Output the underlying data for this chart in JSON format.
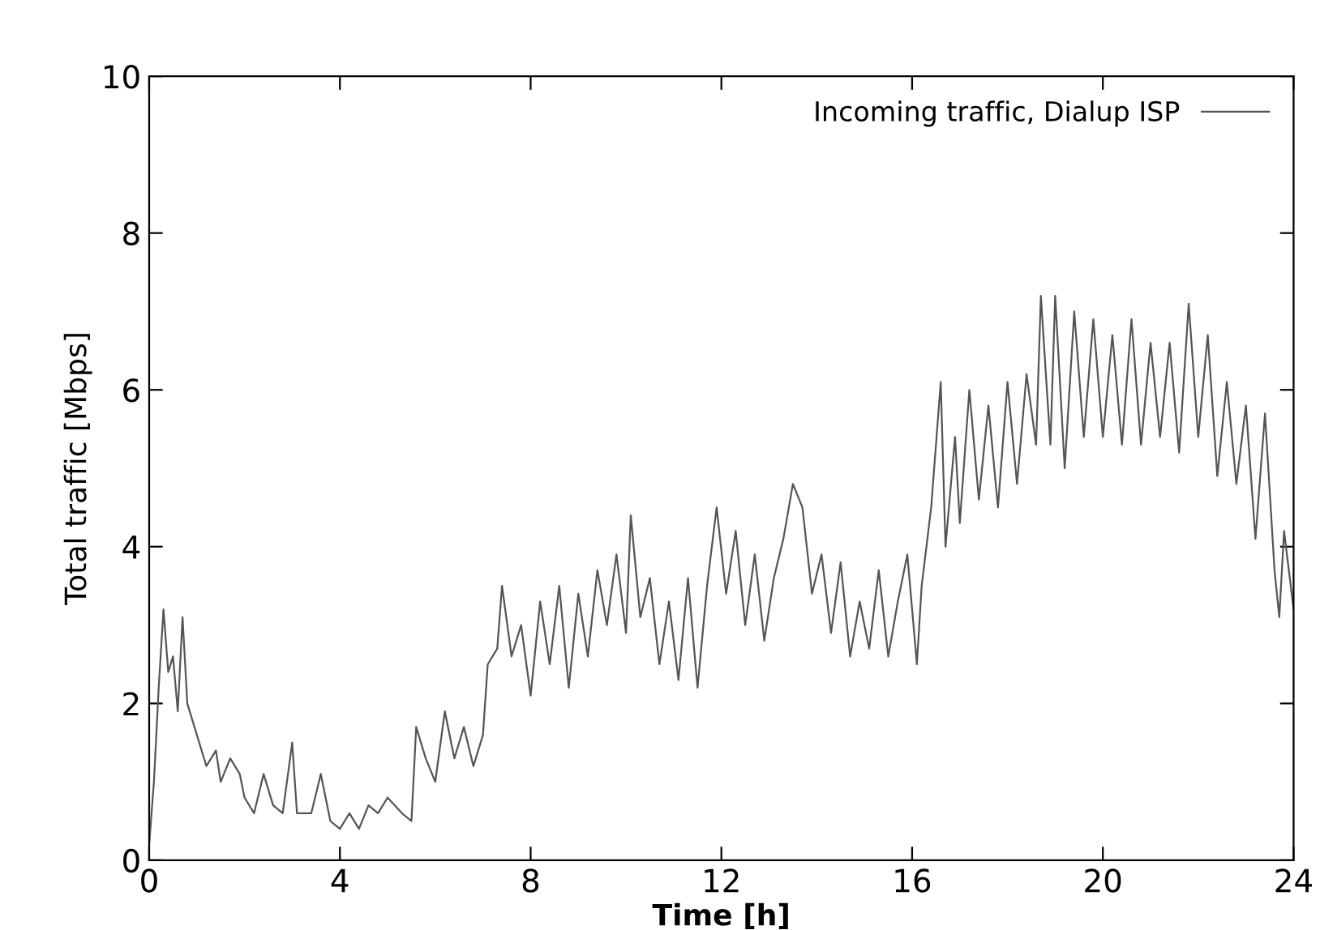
{
  "chart_data": {
    "type": "line",
    "xlabel": "Time [h]",
    "ylabel": "Total traffic [Mbps]",
    "xlim": [
      0,
      24
    ],
    "ylim": [
      0,
      10
    ],
    "xticks": [
      0,
      4,
      8,
      12,
      16,
      20,
      24
    ],
    "yticks": [
      0,
      2,
      4,
      6,
      8,
      10
    ],
    "grid": false,
    "legend": "top right",
    "marker": "none",
    "line_style": "solid",
    "series": [
      {
        "name": "Incoming traffic, Dialup ISP",
        "color": "#555555",
        "x": [
          0,
          0.1,
          0.2,
          0.3,
          0.4,
          0.5,
          0.6,
          0.7,
          0.8,
          1.0,
          1.2,
          1.4,
          1.5,
          1.7,
          1.9,
          2.0,
          2.2,
          2.4,
          2.6,
          2.8,
          3.0,
          3.1,
          3.4,
          3.6,
          3.8,
          4.0,
          4.2,
          4.4,
          4.6,
          4.8,
          5.0,
          5.3,
          5.5,
          5.6,
          5.8,
          6.0,
          6.2,
          6.4,
          6.6,
          6.8,
          7.0,
          7.1,
          7.3,
          7.4,
          7.6,
          7.8,
          8.0,
          8.2,
          8.4,
          8.6,
          8.8,
          9.0,
          9.2,
          9.4,
          9.6,
          9.8,
          10.0,
          10.1,
          10.3,
          10.5,
          10.7,
          10.9,
          11.1,
          11.3,
          11.5,
          11.7,
          11.9,
          12.1,
          12.3,
          12.5,
          12.7,
          12.9,
          13.1,
          13.3,
          13.5,
          13.7,
          13.9,
          14.1,
          14.3,
          14.5,
          14.7,
          14.9,
          15.1,
          15.3,
          15.5,
          15.7,
          15.9,
          16.1,
          16.2,
          16.4,
          16.6,
          16.7,
          16.9,
          17.0,
          17.2,
          17.4,
          17.6,
          17.8,
          18.0,
          18.2,
          18.4,
          18.6,
          18.7,
          18.9,
          19.0,
          19.2,
          19.4,
          19.6,
          19.8,
          20.0,
          20.2,
          20.4,
          20.6,
          20.8,
          21.0,
          21.2,
          21.4,
          21.6,
          21.8,
          22.0,
          22.2,
          22.4,
          22.6,
          22.8,
          23.0,
          23.2,
          23.4,
          23.6,
          23.7,
          23.8,
          24.0
        ],
        "values": [
          0.2,
          1.0,
          2.2,
          3.2,
          2.4,
          2.6,
          1.9,
          3.1,
          2.0,
          1.6,
          1.2,
          1.4,
          1.0,
          1.3,
          1.1,
          0.8,
          0.6,
          1.1,
          0.7,
          0.6,
          1.5,
          0.6,
          0.6,
          1.1,
          0.5,
          0.4,
          0.6,
          0.4,
          0.7,
          0.6,
          0.8,
          0.6,
          0.5,
          1.7,
          1.3,
          1.0,
          1.9,
          1.3,
          1.7,
          1.2,
          1.6,
          2.5,
          2.7,
          3.5,
          2.6,
          3.0,
          2.1,
          3.3,
          2.5,
          3.5,
          2.2,
          3.4,
          2.6,
          3.7,
          3.0,
          3.9,
          2.9,
          4.4,
          3.1,
          3.6,
          2.5,
          3.3,
          2.3,
          3.6,
          2.2,
          3.5,
          4.5,
          3.4,
          4.2,
          3.0,
          3.9,
          2.8,
          3.6,
          4.1,
          4.8,
          4.5,
          3.4,
          3.9,
          2.9,
          3.8,
          2.6,
          3.3,
          2.7,
          3.7,
          2.6,
          3.3,
          3.9,
          2.5,
          3.5,
          4.5,
          6.1,
          4.0,
          5.4,
          4.3,
          6.0,
          4.6,
          5.8,
          4.5,
          6.1,
          4.8,
          6.2,
          5.3,
          7.2,
          5.3,
          7.2,
          5.0,
          7.0,
          5.4,
          6.9,
          5.4,
          6.7,
          5.3,
          6.9,
          5.3,
          6.6,
          5.4,
          6.6,
          5.2,
          7.1,
          5.4,
          6.7,
          4.9,
          6.1,
          4.8,
          5.8,
          4.1,
          5.7,
          3.7,
          3.1,
          4.2,
          3.2
        ]
      }
    ]
  }
}
